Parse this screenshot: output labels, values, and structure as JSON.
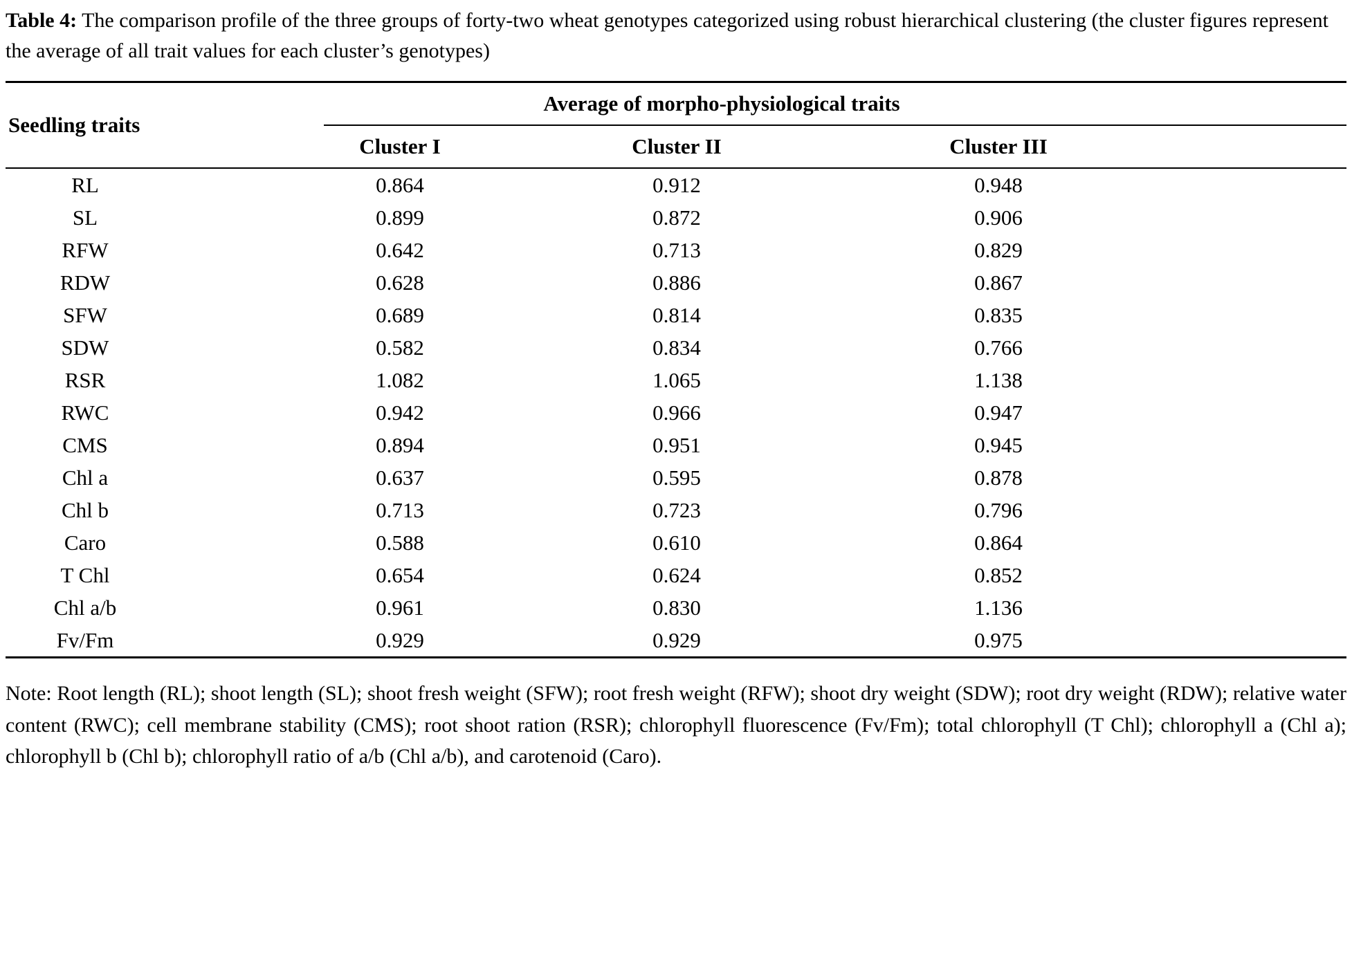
{
  "caption": {
    "label": "Table 4:",
    "text": "The comparison profile of the three groups of forty-two wheat genotypes categorized using robust hierarchical clustering (the cluster figures represent the average of all trait values for each cluster’s genotypes)"
  },
  "table": {
    "row_header": "Seedling traits",
    "spanner": "Average of morpho-physiological traits",
    "columns": [
      "Cluster I",
      "Cluster II",
      "Cluster III"
    ],
    "rows": [
      {
        "trait": "RL",
        "values": [
          "0.864",
          "0.912",
          "0.948"
        ]
      },
      {
        "trait": "SL",
        "values": [
          "0.899",
          "0.872",
          "0.906"
        ]
      },
      {
        "trait": "RFW",
        "values": [
          "0.642",
          "0.713",
          "0.829"
        ]
      },
      {
        "trait": "RDW",
        "values": [
          "0.628",
          "0.886",
          "0.867"
        ]
      },
      {
        "trait": "SFW",
        "values": [
          "0.689",
          "0.814",
          "0.835"
        ]
      },
      {
        "trait": "SDW",
        "values": [
          "0.582",
          "0.834",
          "0.766"
        ]
      },
      {
        "trait": "RSR",
        "values": [
          "1.082",
          "1.065",
          "1.138"
        ]
      },
      {
        "trait": "RWC",
        "values": [
          "0.942",
          "0.966",
          "0.947"
        ]
      },
      {
        "trait": "CMS",
        "values": [
          "0.894",
          "0.951",
          "0.945"
        ]
      },
      {
        "trait": "Chl a",
        "values": [
          "0.637",
          "0.595",
          "0.878"
        ]
      },
      {
        "trait": "Chl b",
        "values": [
          "0.713",
          "0.723",
          "0.796"
        ]
      },
      {
        "trait": "Caro",
        "values": [
          "0.588",
          "0.610",
          "0.864"
        ]
      },
      {
        "trait": "T Chl",
        "values": [
          "0.654",
          "0.624",
          "0.852"
        ]
      },
      {
        "trait": "Chl a/b",
        "values": [
          "0.961",
          "0.830",
          "1.136"
        ]
      },
      {
        "trait": "Fv/Fm",
        "values": [
          "0.929",
          "0.929",
          "0.975"
        ]
      }
    ]
  },
  "note": "Note: Root length (RL); shoot length (SL); shoot fresh weight (SFW); root fresh weight (RFW); shoot dry weight (SDW); root dry weight (RDW); relative water content (RWC); cell membrane stability (CMS); root shoot ration (RSR); chlorophyll fluorescence (Fv/Fm); total chlorophyll (T Chl); chlorophyll a (Chl a); chlorophyll b (Chl b); chlorophyll ratio of a/b (Chl a/b), and carotenoid (Caro)."
}
